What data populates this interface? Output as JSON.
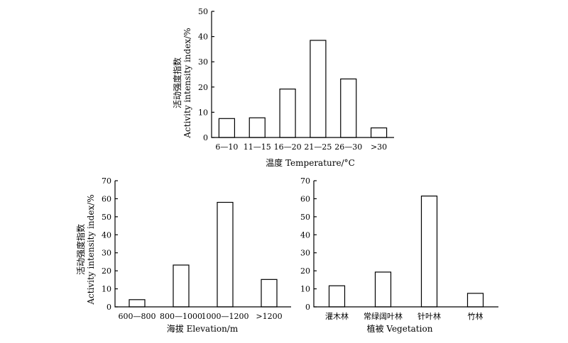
{
  "chart_data": [
    {
      "type": "bar",
      "categories": [
        "6—10",
        "11—15",
        "16—20",
        "21—25",
        "26—30",
        ">30"
      ],
      "values": [
        7.5,
        7.8,
        19.2,
        38.5,
        23.2,
        3.8
      ],
      "xlabel": "温度 Temperature/°C",
      "ylabel_cn": "活动强度指数",
      "ylabel_en": "Activity intensity index/%",
      "ylim": [
        0,
        50
      ],
      "yticks": [
        "0",
        "10",
        "20",
        "30",
        "40",
        "50"
      ]
    },
    {
      "type": "bar",
      "categories": [
        "600—800",
        "800—1000",
        "1000—1200",
        ">1200"
      ],
      "values": [
        4,
        23.2,
        58,
        15.2
      ],
      "xlabel": "海拔 Elevation/m",
      "ylabel_cn": "活动强度指数",
      "ylabel_en": "Activity intensity index/%",
      "ylim": [
        0,
        70
      ],
      "yticks": [
        "0",
        "10",
        "20",
        "30",
        "40",
        "50",
        "60",
        "70"
      ]
    },
    {
      "type": "bar",
      "categories": [
        "灌木林",
        "常绿阔叶林",
        "针叶林",
        "竹林"
      ],
      "values": [
        11.7,
        19.3,
        61.5,
        7.5
      ],
      "xlabel": "植被 Vegetation",
      "ylim": [
        0,
        70
      ],
      "yticks": [
        "0",
        "10",
        "20",
        "30",
        "40",
        "50",
        "60",
        "70"
      ]
    }
  ]
}
